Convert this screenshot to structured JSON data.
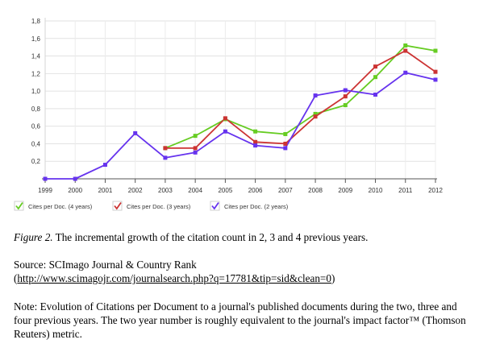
{
  "chart_data": {
    "type": "line",
    "x": [
      "1999",
      "2000",
      "2001",
      "2002",
      "2003",
      "2004",
      "2005",
      "2006",
      "2007",
      "2008",
      "2009",
      "2010",
      "2011",
      "2012"
    ],
    "series": [
      {
        "name": "Cites per Doc. (4 years)",
        "color": "#66cc22",
        "values": [
          null,
          null,
          null,
          null,
          0.35,
          0.49,
          0.68,
          0.54,
          0.51,
          0.74,
          0.84,
          1.16,
          1.52,
          1.46
        ]
      },
      {
        "name": "Cites per Doc. (3 years)",
        "color": "#cc3333",
        "values": [
          null,
          null,
          null,
          null,
          0.35,
          0.35,
          0.69,
          0.42,
          0.4,
          0.71,
          0.94,
          1.28,
          1.46,
          1.22
        ]
      },
      {
        "name": "Cites per Doc. (2 years)",
        "color": "#6633ee",
        "values": [
          0.0,
          0.0,
          0.16,
          0.52,
          0.24,
          0.3,
          0.54,
          0.38,
          0.35,
          0.95,
          1.01,
          0.96,
          1.21,
          1.13
        ]
      }
    ],
    "yticks": [
      "0,2",
      "0,4",
      "0,6",
      "0,8",
      "1,0",
      "1,2",
      "1,4",
      "1,6",
      "1,8"
    ],
    "ylim": [
      0,
      1.8
    ],
    "grid": true,
    "legend": "bottom-left"
  },
  "caption": {
    "label": "Figure 2.",
    "text": " The incremental growth of the citation count in 2, 3 and 4 previous years."
  },
  "source": {
    "line1": "Source: SCImago Journal & Country Rank",
    "open": "(",
    "url": "http://www.scimagojr.com/journalsearch.php?q=17781&tip=sid&clean=0",
    "close": ")"
  },
  "note": {
    "text": "Note: Evolution of Citations per Document to a journal's published documents during the two, three and four previous years. The two year number is roughly equivalent to the journal's impact factor™ (Thomson Reuters) metric."
  }
}
